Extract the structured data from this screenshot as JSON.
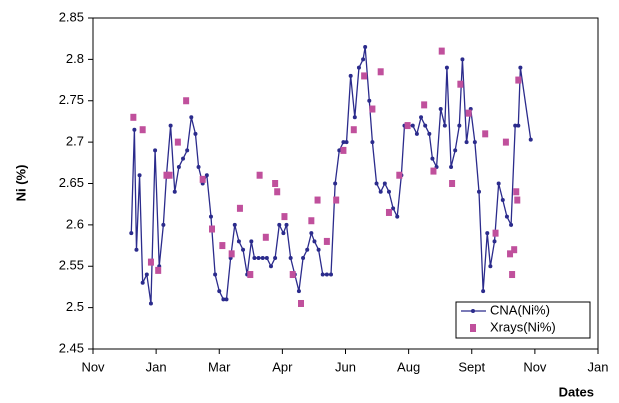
{
  "chart_data": {
    "type": "line",
    "y_label": "Ni (%)",
    "x_label": "Dates",
    "xlim": [
      0,
      488
    ],
    "xticks": [
      {
        "value": 0,
        "label": "Nov"
      },
      {
        "value": 61,
        "label": "Jan"
      },
      {
        "value": 122,
        "label": "Mar"
      },
      {
        "value": 183,
        "label": "Apr"
      },
      {
        "value": 244,
        "label": "Jun"
      },
      {
        "value": 305,
        "label": "Aug"
      },
      {
        "value": 366,
        "label": "Sept"
      },
      {
        "value": 427,
        "label": "Nov"
      },
      {
        "value": 488,
        "label": "Jan"
      }
    ],
    "ylim": [
      2.45,
      2.85
    ],
    "yticks": [
      2.45,
      2.5,
      2.55,
      2.6,
      2.65,
      2.7,
      2.75,
      2.8,
      2.85
    ],
    "legend": "lower right",
    "series": [
      {
        "name": "CNA(Ni%)",
        "color": "#2b2b8c",
        "style": "line-marker",
        "x": [
          37,
          40,
          42,
          45,
          48,
          52,
          56,
          60,
          64,
          68,
          71,
          75,
          79,
          83,
          87,
          91,
          95,
          99,
          102,
          106,
          110,
          114,
          118,
          122,
          126,
          129,
          133,
          137,
          141,
          145,
          149,
          153,
          156,
          160,
          164,
          168,
          172,
          176,
          180,
          184,
          187,
          191,
          195,
          199,
          203,
          207,
          211,
          214,
          218,
          222,
          226,
          230,
          234,
          238,
          242,
          245,
          249,
          253,
          257,
          261,
          263,
          267,
          270,
          274,
          278,
          282,
          286,
          290,
          294,
          298,
          301,
          305,
          309,
          313,
          317,
          321,
          325,
          328,
          332,
          336,
          340,
          342,
          346,
          350,
          354,
          357,
          361,
          365,
          369,
          373,
          377,
          381,
          384,
          388,
          392,
          396,
          400,
          404,
          408,
          411,
          413,
          423
        ],
        "values": [
          2.59,
          2.715,
          2.57,
          2.66,
          2.53,
          2.54,
          2.505,
          2.69,
          2.55,
          2.6,
          2.66,
          2.72,
          2.64,
          2.67,
          2.68,
          2.69,
          2.73,
          2.71,
          2.67,
          2.65,
          2.66,
          2.61,
          2.54,
          2.52,
          2.51,
          2.51,
          2.56,
          2.6,
          2.58,
          2.57,
          2.54,
          2.58,
          2.56,
          2.56,
          2.56,
          2.56,
          2.55,
          2.56,
          2.6,
          2.59,
          2.6,
          2.56,
          2.54,
          2.52,
          2.56,
          2.57,
          2.59,
          2.58,
          2.57,
          2.54,
          2.54,
          2.54,
          2.65,
          2.69,
          2.7,
          2.7,
          2.78,
          2.73,
          2.79,
          2.8,
          2.815,
          2.75,
          2.7,
          2.65,
          2.64,
          2.65,
          2.64,
          2.62,
          2.61,
          2.66,
          2.72,
          2.72,
          2.72,
          2.71,
          2.73,
          2.72,
          2.71,
          2.68,
          2.67,
          2.74,
          2.72,
          2.79,
          2.67,
          2.69,
          2.72,
          2.8,
          2.7,
          2.74,
          2.7,
          2.64,
          2.52,
          2.59,
          2.55,
          2.58,
          2.65,
          2.63,
          2.61,
          2.6,
          2.72,
          2.72,
          2.79,
          2.703
        ]
      },
      {
        "name": "Xrays(Ni%)",
        "color": "#c0509c",
        "style": "marker",
        "x": [
          39,
          48,
          56,
          63,
          71,
          74,
          82,
          90,
          106,
          115,
          125,
          134,
          142,
          152,
          161,
          167,
          176,
          178,
          185,
          193,
          201,
          211,
          217,
          226,
          235,
          242,
          252,
          262,
          270,
          278,
          286,
          296,
          304,
          320,
          329,
          337,
          347,
          355,
          363,
          379,
          389,
          399,
          403,
          405,
          407,
          409,
          410,
          411
        ],
        "values": [
          2.73,
          2.715,
          2.555,
          2.545,
          2.66,
          2.66,
          2.7,
          2.75,
          2.655,
          2.595,
          2.575,
          2.565,
          2.62,
          2.54,
          2.66,
          2.585,
          2.65,
          2.64,
          2.61,
          2.54,
          2.505,
          2.605,
          2.63,
          2.58,
          2.63,
          2.69,
          2.715,
          2.78,
          2.74,
          2.785,
          2.615,
          2.66,
          2.72,
          2.745,
          2.665,
          2.81,
          2.65,
          2.77,
          2.735,
          2.71,
          2.59,
          2.7,
          2.565,
          2.54,
          2.57,
          2.64,
          2.63,
          2.775
        ]
      }
    ]
  }
}
